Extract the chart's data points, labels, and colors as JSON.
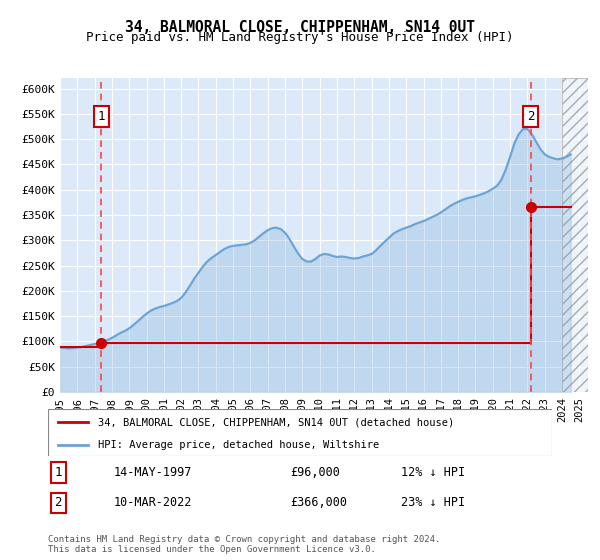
{
  "title1": "34, BALMORAL CLOSE, CHIPPENHAM, SN14 0UT",
  "title2": "Price paid vs. HM Land Registry's House Price Index (HPI)",
  "ylabel_ticks": [
    "£0",
    "£50K",
    "£100K",
    "£150K",
    "£200K",
    "£250K",
    "£300K",
    "£350K",
    "£400K",
    "£450K",
    "£500K",
    "£550K",
    "£600K"
  ],
  "ytick_values": [
    0,
    50000,
    100000,
    150000,
    200000,
    250000,
    300000,
    350000,
    400000,
    450000,
    500000,
    550000,
    600000
  ],
  "ylim": [
    0,
    620000
  ],
  "xlim_start": 1995.0,
  "xlim_end": 2025.5,
  "xtick_years": [
    1995,
    1996,
    1997,
    1998,
    1999,
    2000,
    2001,
    2002,
    2003,
    2004,
    2005,
    2006,
    2007,
    2008,
    2009,
    2010,
    2011,
    2012,
    2013,
    2014,
    2015,
    2016,
    2017,
    2018,
    2019,
    2020,
    2021,
    2022,
    2023,
    2024,
    2025
  ],
  "bg_color": "#dce9f8",
  "hpi_color": "#6ba3d6",
  "price_color": "#cc0000",
  "dashed_color": "#ff4444",
  "marker_color": "#cc0000",
  "sale1_x": 1997.37,
  "sale1_y": 96000,
  "sale2_x": 2022.19,
  "sale2_y": 366000,
  "legend_line1": "34, BALMORAL CLOSE, CHIPPENHAM, SN14 0UT (detached house)",
  "legend_line2": "HPI: Average price, detached house, Wiltshire",
  "table_row1_num": "1",
  "table_row1_date": "14-MAY-1997",
  "table_row1_price": "£96,000",
  "table_row1_hpi": "12% ↓ HPI",
  "table_row2_num": "2",
  "table_row2_date": "10-MAR-2022",
  "table_row2_price": "£366,000",
  "table_row2_hpi": "23% ↓ HPI",
  "footer": "Contains HM Land Registry data © Crown copyright and database right 2024.\nThis data is licensed under the Open Government Licence v3.0.",
  "hpi_data_x": [
    1995.0,
    1995.25,
    1995.5,
    1995.75,
    1996.0,
    1996.25,
    1996.5,
    1996.75,
    1997.0,
    1997.25,
    1997.5,
    1997.75,
    1998.0,
    1998.25,
    1998.5,
    1998.75,
    1999.0,
    1999.25,
    1999.5,
    1999.75,
    2000.0,
    2000.25,
    2000.5,
    2000.75,
    2001.0,
    2001.25,
    2001.5,
    2001.75,
    2002.0,
    2002.25,
    2002.5,
    2002.75,
    2003.0,
    2003.25,
    2003.5,
    2003.75,
    2004.0,
    2004.25,
    2004.5,
    2004.75,
    2005.0,
    2005.25,
    2005.5,
    2005.75,
    2006.0,
    2006.25,
    2006.5,
    2006.75,
    2007.0,
    2007.25,
    2007.5,
    2007.75,
    2008.0,
    2008.25,
    2008.5,
    2008.75,
    2009.0,
    2009.25,
    2009.5,
    2009.75,
    2010.0,
    2010.25,
    2010.5,
    2010.75,
    2011.0,
    2011.25,
    2011.5,
    2011.75,
    2012.0,
    2012.25,
    2012.5,
    2012.75,
    2013.0,
    2013.25,
    2013.5,
    2013.75,
    2014.0,
    2014.25,
    2014.5,
    2014.75,
    2015.0,
    2015.25,
    2015.5,
    2015.75,
    2016.0,
    2016.25,
    2016.5,
    2016.75,
    2017.0,
    2017.25,
    2017.5,
    2017.75,
    2018.0,
    2018.25,
    2018.5,
    2018.75,
    2019.0,
    2019.25,
    2019.5,
    2019.75,
    2020.0,
    2020.25,
    2020.5,
    2020.75,
    2021.0,
    2021.25,
    2021.5,
    2021.75,
    2022.0,
    2022.25,
    2022.5,
    2022.75,
    2023.0,
    2023.25,
    2023.5,
    2023.75,
    2024.0,
    2024.25,
    2024.5
  ],
  "hpi_data_y": [
    88000,
    87000,
    86000,
    87000,
    88000,
    89000,
    91000,
    93000,
    95000,
    96000,
    99000,
    103000,
    107000,
    112000,
    117000,
    121000,
    126000,
    133000,
    140000,
    148000,
    155000,
    161000,
    165000,
    168000,
    170000,
    173000,
    176000,
    180000,
    186000,
    197000,
    210000,
    224000,
    236000,
    248000,
    258000,
    265000,
    271000,
    277000,
    283000,
    287000,
    289000,
    290000,
    291000,
    292000,
    295000,
    300000,
    307000,
    314000,
    320000,
    324000,
    325000,
    322000,
    315000,
    303000,
    288000,
    274000,
    263000,
    258000,
    258000,
    263000,
    270000,
    273000,
    272000,
    269000,
    267000,
    268000,
    267000,
    265000,
    264000,
    265000,
    268000,
    270000,
    273000,
    280000,
    289000,
    297000,
    305000,
    313000,
    318000,
    322000,
    325000,
    328000,
    332000,
    335000,
    338000,
    342000,
    346000,
    350000,
    355000,
    361000,
    367000,
    372000,
    376000,
    380000,
    383000,
    385000,
    387000,
    390000,
    393000,
    397000,
    402000,
    408000,
    420000,
    440000,
    465000,
    492000,
    510000,
    520000,
    520000,
    510000,
    495000,
    480000,
    470000,
    465000,
    462000,
    460000,
    462000,
    465000,
    470000
  ],
  "price_data_x": [
    1995.0,
    1997.37,
    2022.19,
    2024.5
  ],
  "price_data_y": [
    88000,
    96000,
    366000,
    366000
  ],
  "hatched_x_start": 2024.0,
  "hatched_x_end": 2025.5
}
